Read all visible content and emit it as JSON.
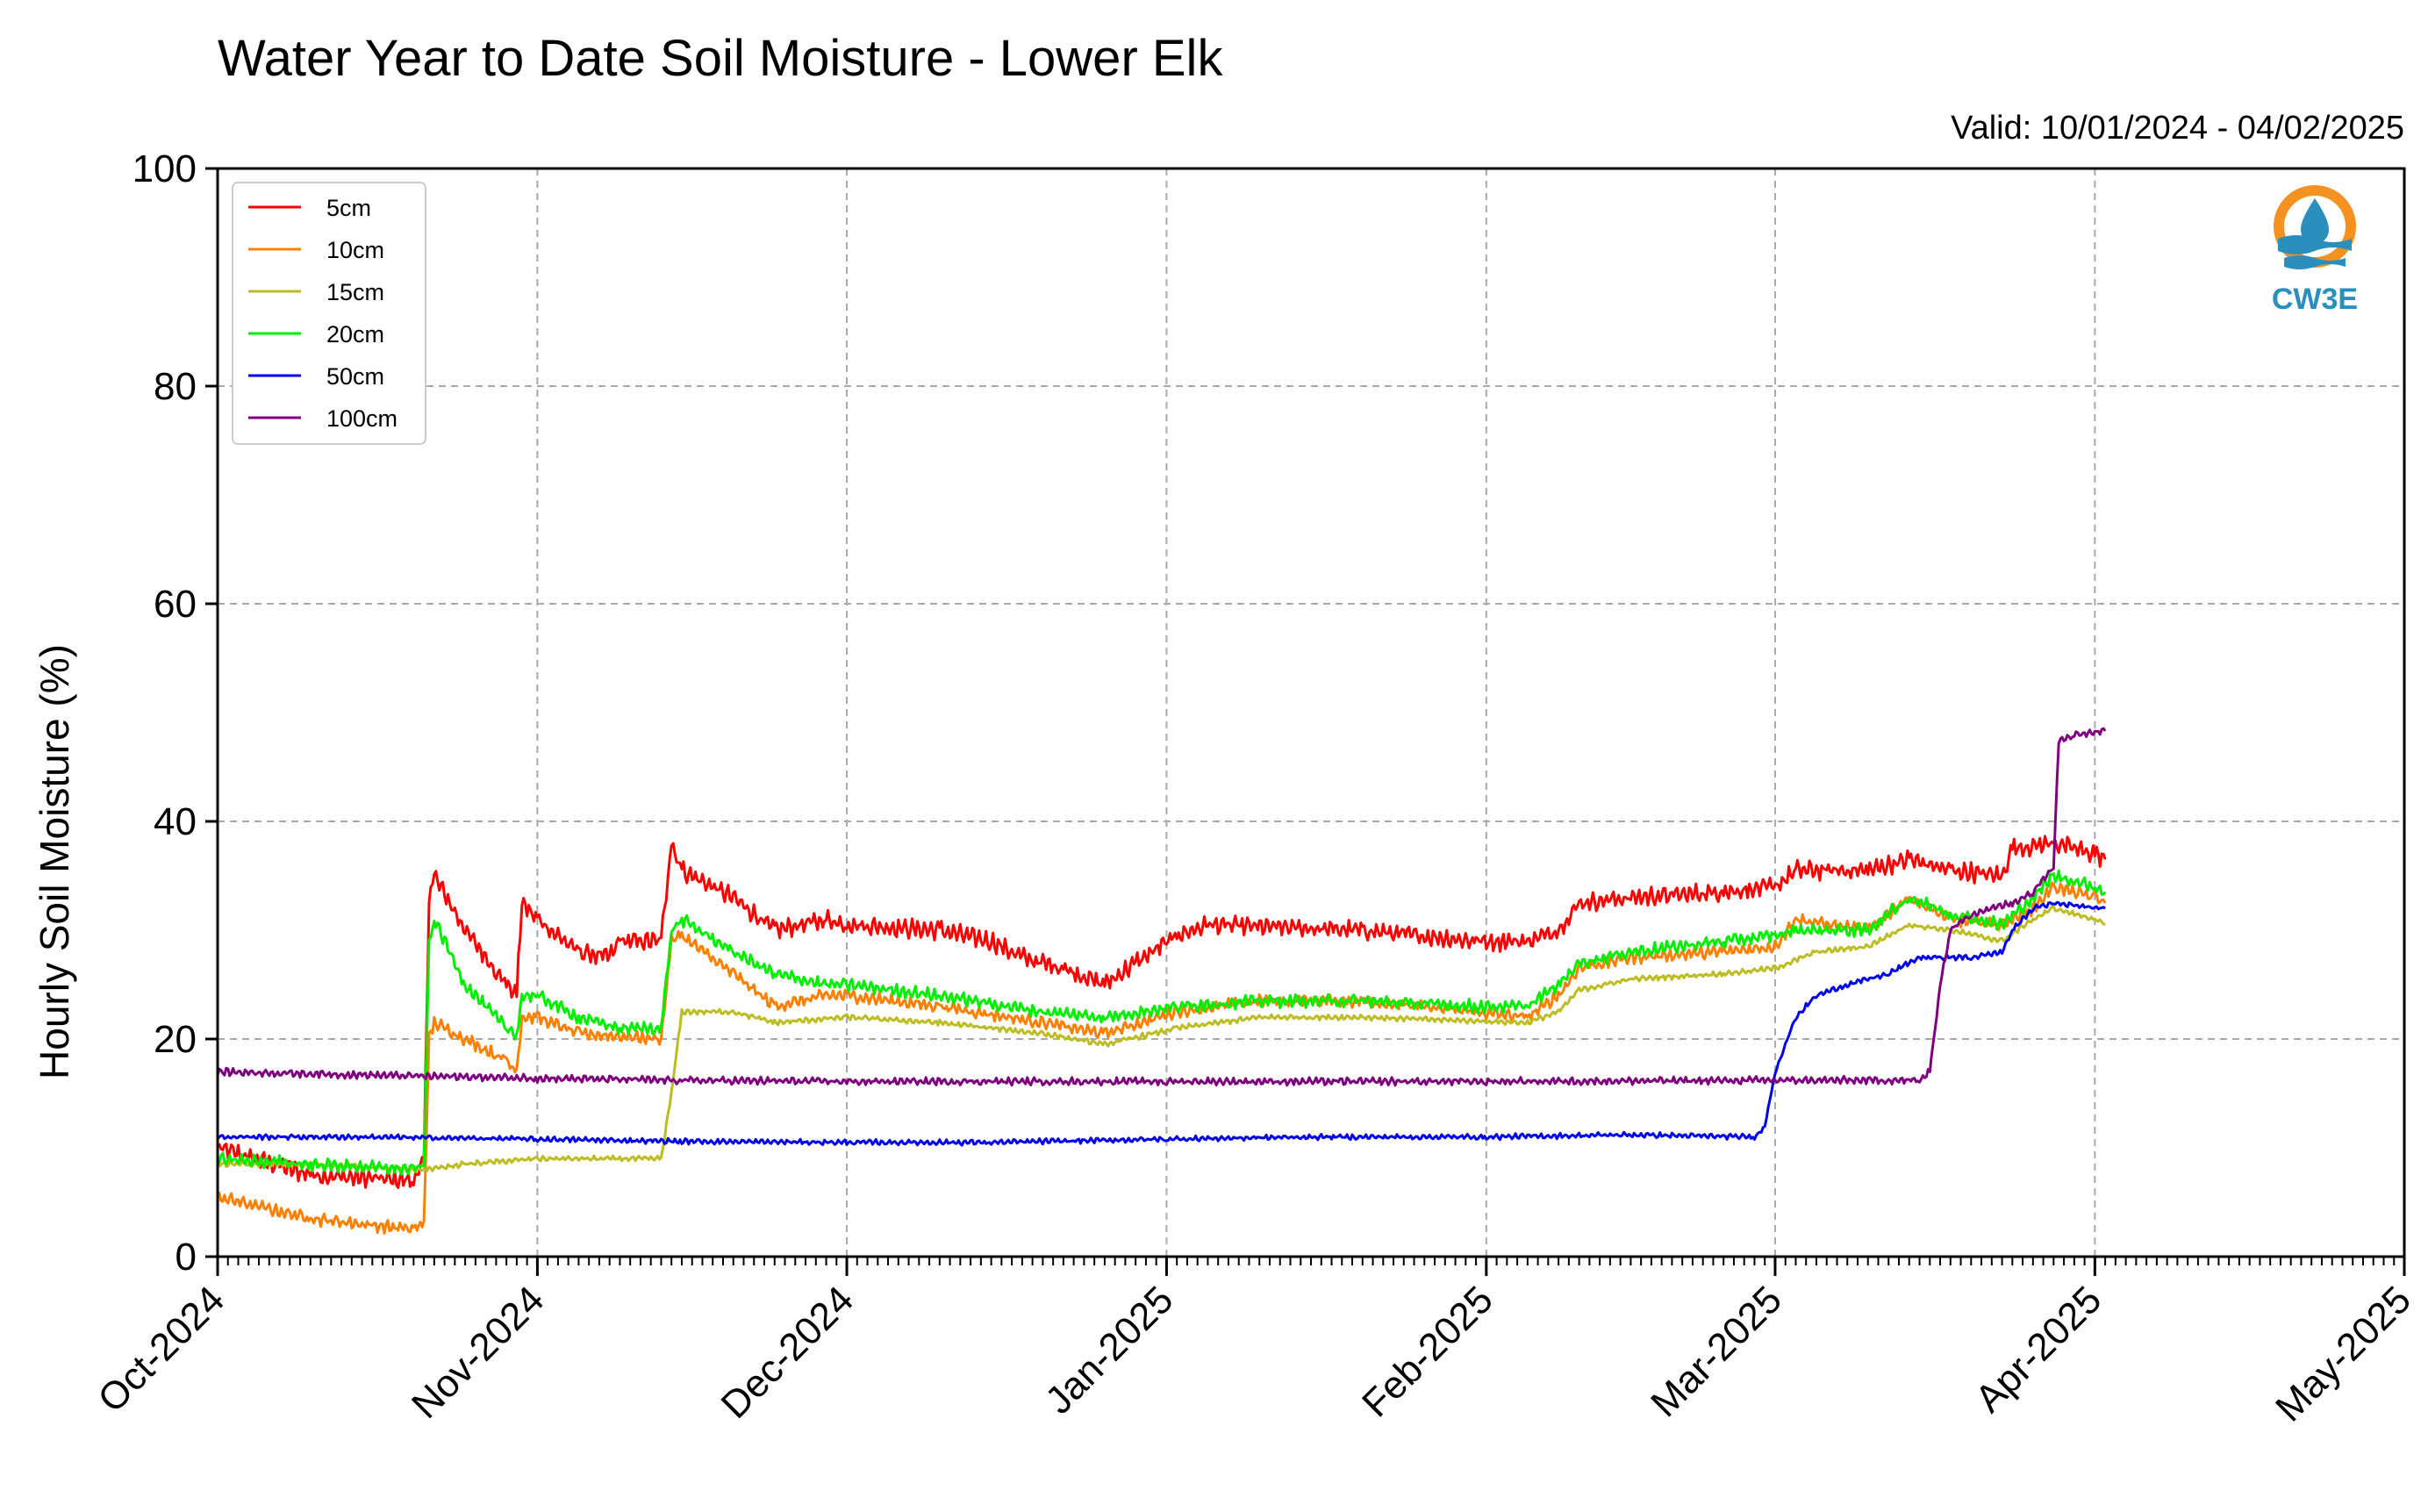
{
  "chart_data": {
    "type": "line",
    "title": "Water Year to Date Soil Moisture - Lower Elk",
    "subtitle": "Valid: 10/01/2024 - 04/02/2025",
    "xlabel": "",
    "ylabel": "Hourly Soil Moisture (%)",
    "ylim": [
      0,
      100
    ],
    "yticks": [
      0,
      20,
      40,
      60,
      80,
      100
    ],
    "xlim": [
      "2024-10-01",
      "2025-05-01"
    ],
    "xticks": [
      "Oct-2024",
      "Nov-2024",
      "Dec-2024",
      "Jan-2025",
      "Feb-2025",
      "Mar-2025",
      "Apr-2025",
      "May-2025"
    ],
    "grid": true,
    "legend_position": "top-left",
    "series": [
      {
        "name": "5cm",
        "color": "#ff0000",
        "points": [
          [
            "2024-10-01",
            10
          ],
          [
            "2024-10-10",
            7.5
          ],
          [
            "2024-10-20",
            7
          ],
          [
            "2024-10-21",
            8.5
          ],
          [
            "2024-10-21 12:00",
            33
          ],
          [
            "2024-10-22",
            35
          ],
          [
            "2024-10-25",
            30
          ],
          [
            "2024-10-29",
            25
          ],
          [
            "2024-10-30",
            24
          ],
          [
            "2024-10-30 12:00",
            32.5
          ],
          [
            "2024-11-01",
            31
          ],
          [
            "2024-11-05",
            28
          ],
          [
            "2024-11-08",
            27.5
          ],
          [
            "2024-11-09",
            29
          ],
          [
            "2024-11-13",
            29
          ],
          [
            "2024-11-14",
            38
          ],
          [
            "2024-11-15",
            35.5
          ],
          [
            "2024-11-20",
            33
          ],
          [
            "2024-11-24",
            30
          ],
          [
            "2024-11-29",
            31
          ],
          [
            "2024-12-01",
            30.5
          ],
          [
            "2024-12-10",
            30
          ],
          [
            "2024-12-15",
            29
          ],
          [
            "2024-12-18",
            27.5
          ],
          [
            "2024-12-22",
            26.5
          ],
          [
            "2024-12-26",
            25
          ],
          [
            "2024-12-29",
            27
          ],
          [
            "2025-01-02",
            29.5
          ],
          [
            "2025-01-05",
            30.5
          ],
          [
            "2025-01-20",
            30
          ],
          [
            "2025-01-31",
            29
          ],
          [
            "2025-02-05",
            29
          ],
          [
            "2025-02-08",
            30
          ],
          [
            "2025-02-10",
            32.5
          ],
          [
            "2025-02-15",
            33
          ],
          [
            "2025-02-24",
            33.5
          ],
          [
            "2025-03-01",
            34
          ],
          [
            "2025-03-03",
            35.5
          ],
          [
            "2025-03-10",
            35.5
          ],
          [
            "2025-03-14",
            36.5
          ],
          [
            "2025-03-18",
            35.5
          ],
          [
            "2025-03-23",
            35
          ],
          [
            "2025-03-24",
            37.5
          ],
          [
            "2025-03-28",
            38
          ],
          [
            "2025-04-01",
            37
          ],
          [
            "2025-04-02",
            36.5
          ]
        ]
      },
      {
        "name": "10cm",
        "color": "#ff8000",
        "points": [
          [
            "2024-10-01",
            5.5
          ],
          [
            "2024-10-10",
            3.5
          ],
          [
            "2024-10-20",
            2.5
          ],
          [
            "2024-10-21",
            3
          ],
          [
            "2024-10-21 12:00",
            20
          ],
          [
            "2024-10-22",
            21.5
          ],
          [
            "2024-10-25",
            20
          ],
          [
            "2024-10-29",
            18
          ],
          [
            "2024-10-30",
            17
          ],
          [
            "2024-10-30 12:00",
            22
          ],
          [
            "2024-11-01",
            22
          ],
          [
            "2024-11-05",
            20.5
          ],
          [
            "2024-11-13",
            20
          ],
          [
            "2024-11-14",
            29
          ],
          [
            "2024-11-15",
            29.5
          ],
          [
            "2024-11-20",
            26
          ],
          [
            "2024-11-24",
            23
          ],
          [
            "2024-11-29",
            24
          ],
          [
            "2024-12-01",
            24
          ],
          [
            "2024-12-10",
            23
          ],
          [
            "2024-12-20",
            21.5
          ],
          [
            "2024-12-26",
            20.5
          ],
          [
            "2025-01-02",
            22.5
          ],
          [
            "2025-01-10",
            23.5
          ],
          [
            "2025-01-20",
            23.5
          ],
          [
            "2025-01-31",
            22.5
          ],
          [
            "2025-02-05",
            22
          ],
          [
            "2025-02-08",
            24
          ],
          [
            "2025-02-10",
            26.5
          ],
          [
            "2025-02-15",
            27.5
          ],
          [
            "2025-02-24",
            28
          ],
          [
            "2025-03-01",
            28.5
          ],
          [
            "2025-03-03",
            31
          ],
          [
            "2025-03-10",
            30
          ],
          [
            "2025-03-14",
            33
          ],
          [
            "2025-03-18",
            31
          ],
          [
            "2025-03-23",
            30.5
          ],
          [
            "2025-03-26",
            32
          ],
          [
            "2025-03-28",
            34
          ],
          [
            "2025-04-01",
            33
          ],
          [
            "2025-04-02",
            32.5
          ]
        ]
      },
      {
        "name": "15cm",
        "color": "#bcbd22",
        "points": [
          [
            "2024-10-01",
            8.5
          ],
          [
            "2024-10-10",
            8.5
          ],
          [
            "2024-10-21",
            8
          ],
          [
            "2024-10-25",
            8.5
          ],
          [
            "2024-11-01",
            9
          ],
          [
            "2024-11-13",
            9
          ],
          [
            "2024-11-14",
            15
          ],
          [
            "2024-11-15",
            22.5
          ],
          [
            "2024-11-20",
            22.5
          ],
          [
            "2024-11-24",
            21.5
          ],
          [
            "2024-12-01",
            22
          ],
          [
            "2024-12-10",
            21.5
          ],
          [
            "2024-12-20",
            20.5
          ],
          [
            "2024-12-26",
            19.5
          ],
          [
            "2025-01-02",
            21
          ],
          [
            "2025-01-10",
            22
          ],
          [
            "2025-01-20",
            22
          ],
          [
            "2025-02-05",
            21.5
          ],
          [
            "2025-02-08",
            22.5
          ],
          [
            "2025-02-10",
            24.5
          ],
          [
            "2025-02-15",
            25.5
          ],
          [
            "2025-02-24",
            26
          ],
          [
            "2025-03-01",
            26.5
          ],
          [
            "2025-03-05",
            28
          ],
          [
            "2025-03-10",
            28.5
          ],
          [
            "2025-03-14",
            30.5
          ],
          [
            "2025-03-18",
            30
          ],
          [
            "2025-03-23",
            29
          ],
          [
            "2025-03-26",
            31
          ],
          [
            "2025-03-28",
            32
          ],
          [
            "2025-04-01",
            31
          ],
          [
            "2025-04-02",
            30.5
          ]
        ]
      },
      {
        "name": "20cm",
        "color": "#00ee00",
        "points": [
          [
            "2024-10-01",
            9
          ],
          [
            "2024-10-10",
            8.5
          ],
          [
            "2024-10-20",
            8
          ],
          [
            "2024-10-21",
            8.5
          ],
          [
            "2024-10-21 12:00",
            29
          ],
          [
            "2024-10-22",
            31
          ],
          [
            "2024-10-25",
            25
          ],
          [
            "2024-10-29",
            21
          ],
          [
            "2024-10-30",
            20.5
          ],
          [
            "2024-10-30 12:00",
            24
          ],
          [
            "2024-11-01",
            24
          ],
          [
            "2024-11-05",
            22
          ],
          [
            "2024-11-09",
            21
          ],
          [
            "2024-11-13",
            21
          ],
          [
            "2024-11-14",
            30
          ],
          [
            "2024-11-15",
            31
          ],
          [
            "2024-11-20",
            28
          ],
          [
            "2024-11-24",
            26
          ],
          [
            "2024-11-29",
            25
          ],
          [
            "2024-12-01",
            25
          ],
          [
            "2024-12-10",
            24
          ],
          [
            "2024-12-20",
            22.5
          ],
          [
            "2024-12-26",
            22
          ],
          [
            "2025-01-02",
            23
          ],
          [
            "2025-01-10",
            23.5
          ],
          [
            "2025-01-20",
            23.5
          ],
          [
            "2025-01-31",
            23
          ],
          [
            "2025-02-05",
            23
          ],
          [
            "2025-02-08",
            25
          ],
          [
            "2025-02-10",
            27
          ],
          [
            "2025-02-15",
            28
          ],
          [
            "2025-02-24",
            29
          ],
          [
            "2025-03-01",
            29.5
          ],
          [
            "2025-03-03",
            30
          ],
          [
            "2025-03-10",
            30
          ],
          [
            "2025-03-14",
            33
          ],
          [
            "2025-03-18",
            31.5
          ],
          [
            "2025-03-23",
            30.5
          ],
          [
            "2025-03-26",
            33
          ],
          [
            "2025-03-28",
            35
          ],
          [
            "2025-04-01",
            34
          ],
          [
            "2025-04-02",
            33.5
          ]
        ]
      },
      {
        "name": "50cm",
        "color": "#0000ee",
        "points": [
          [
            "2024-10-01",
            11
          ],
          [
            "2024-10-15",
            11
          ],
          [
            "2024-11-01",
            10.8
          ],
          [
            "2024-11-15",
            10.6
          ],
          [
            "2024-12-01",
            10.5
          ],
          [
            "2024-12-15",
            10.5
          ],
          [
            "2025-01-01",
            10.8
          ],
          [
            "2025-01-15",
            11
          ],
          [
            "2025-02-01",
            11
          ],
          [
            "2025-02-15",
            11.2
          ],
          [
            "2025-02-27",
            11
          ],
          [
            "2025-02-28",
            12
          ],
          [
            "2025-03-01",
            17
          ],
          [
            "2025-03-03",
            22
          ],
          [
            "2025-03-05",
            24
          ],
          [
            "2025-03-08",
            25
          ],
          [
            "2025-03-12",
            26
          ],
          [
            "2025-03-15",
            27.5
          ],
          [
            "2025-03-16",
            27.5
          ],
          [
            "2025-03-20",
            27.5
          ],
          [
            "2025-03-23",
            28
          ],
          [
            "2025-03-24",
            30
          ],
          [
            "2025-03-26",
            32
          ],
          [
            "2025-03-28",
            32.5
          ],
          [
            "2025-04-02",
            32
          ]
        ]
      },
      {
        "name": "100cm",
        "color": "#7f007f",
        "points": [
          [
            "2024-10-01",
            17
          ],
          [
            "2024-10-15",
            16.7
          ],
          [
            "2024-11-01",
            16.4
          ],
          [
            "2024-11-15",
            16.2
          ],
          [
            "2024-12-01",
            16.1
          ],
          [
            "2025-01-01",
            16.1
          ],
          [
            "2025-02-01",
            16.1
          ],
          [
            "2025-02-28",
            16.2
          ],
          [
            "2025-03-15",
            16.2
          ],
          [
            "2025-03-16",
            17
          ],
          [
            "2025-03-17",
            25
          ],
          [
            "2025-03-18",
            30
          ],
          [
            "2025-03-20",
            31.5
          ],
          [
            "2025-03-24",
            32.5
          ],
          [
            "2025-03-26",
            33.5
          ],
          [
            "2025-03-28",
            36
          ],
          [
            "2025-03-28 12:00",
            47.5
          ],
          [
            "2025-03-30",
            48
          ],
          [
            "2025-04-02",
            48.3
          ]
        ]
      }
    ]
  },
  "logo": {
    "text": "CW3E",
    "colors": {
      "orange": "#f39221",
      "blue": "#2b8fbd"
    }
  }
}
